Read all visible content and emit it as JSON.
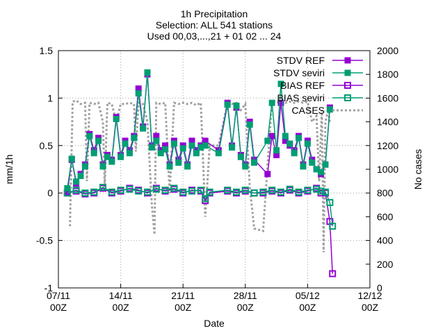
{
  "chart_data": {
    "type": "line",
    "title_lines": [
      "1h Precipitation",
      "Selection: ALL    541 stations",
      "Used 00,03,...,21 + 01 02 ... 24"
    ],
    "xlabel": "Date",
    "ylabel": "mm/1h",
    "y2label": "No cases",
    "ylim": [
      -1,
      1.5
    ],
    "y2lim": [
      0,
      2000
    ],
    "xlim": [
      "2011-11-07 00Z",
      "2011-12-12 00Z"
    ],
    "x_ticks": [
      {
        "day": 0,
        "label": "07/11",
        "sub": "00Z"
      },
      {
        "day": 7,
        "label": "14/11",
        "sub": "00Z"
      },
      {
        "day": 14,
        "label": "21/11",
        "sub": "00Z"
      },
      {
        "day": 21,
        "label": "28/11",
        "sub": "00Z"
      },
      {
        "day": 28,
        "label": "05/12",
        "sub": "00Z"
      },
      {
        "day": 35,
        "label": "12/12",
        "sub": "00Z"
      }
    ],
    "y_ticks": [
      {
        "v": -1,
        "label": "-1"
      },
      {
        "v": -0.5,
        "label": "-0.5"
      },
      {
        "v": 0,
        "label": "0"
      },
      {
        "v": 0.5,
        "label": "0.5"
      },
      {
        "v": 1,
        "label": "1"
      },
      {
        "v": 1.5,
        "label": "1.5"
      }
    ],
    "y2_ticks": [
      {
        "v": 0,
        "label": "0"
      },
      {
        "v": 200,
        "label": "200"
      },
      {
        "v": 400,
        "label": "400"
      },
      {
        "v": 600,
        "label": "600"
      },
      {
        "v": 800,
        "label": "800"
      },
      {
        "v": 1000,
        "label": "1000"
      },
      {
        "v": 1200,
        "label": "1200"
      },
      {
        "v": 1400,
        "label": "1400"
      },
      {
        "v": 1600,
        "label": "1600"
      },
      {
        "v": 1800,
        "label": "1800"
      },
      {
        "v": 2000,
        "label": "2000"
      }
    ],
    "grid": true,
    "legend_position": "top-right",
    "series": [
      {
        "name": "STDV REF",
        "color": "#9400d3",
        "marker": "filled-square",
        "points": [
          [
            1,
            0.0
          ],
          [
            1.5,
            0.35
          ],
          [
            2,
            0.1
          ],
          [
            2.5,
            0.2
          ],
          [
            3,
            0.3
          ],
          [
            3.5,
            0.62
          ],
          [
            4,
            0.45
          ],
          [
            4.5,
            0.58
          ],
          [
            5,
            0.3
          ],
          [
            5.5,
            0.4
          ],
          [
            6,
            0.35
          ],
          [
            6.5,
            0.8
          ],
          [
            7,
            0.4
          ],
          [
            7.5,
            0.55
          ],
          [
            8,
            0.45
          ],
          [
            8.5,
            0.6
          ],
          [
            9,
            1.1
          ],
          [
            9.5,
            0.7
          ],
          [
            10,
            1.25
          ],
          [
            10.5,
            0.5
          ],
          [
            11,
            0.6
          ],
          [
            11.5,
            0.45
          ],
          [
            12,
            0.5
          ],
          [
            12.5,
            0.3
          ],
          [
            13,
            0.55
          ],
          [
            13.5,
            0.35
          ],
          [
            14,
            0.5
          ],
          [
            14.5,
            0.3
          ],
          [
            15,
            0.55
          ],
          [
            15.5,
            0.45
          ],
          [
            16,
            0.5
          ],
          [
            16.5,
            0.55
          ],
          [
            18,
            0.45
          ],
          [
            19,
            0.95
          ],
          [
            19.5,
            0.5
          ],
          [
            20,
            0.9
          ],
          [
            20.5,
            0.4
          ],
          [
            21,
            0.3
          ],
          [
            21.5,
            0.75
          ],
          [
            22,
            0.35
          ],
          [
            23.5,
            0.2
          ],
          [
            24,
            0.6
          ],
          [
            24.5,
            0.4
          ],
          [
            25,
            0.95
          ],
          [
            25.5,
            0.55
          ],
          [
            26,
            0.5
          ],
          [
            26.5,
            0.45
          ],
          [
            27,
            0.6
          ],
          [
            27.5,
            0.3
          ],
          [
            28,
            0.55
          ],
          [
            28.5,
            0.35
          ],
          [
            29,
            0.25
          ],
          [
            29.5,
            0.2
          ],
          [
            30,
            0.3
          ],
          [
            30.5,
            0.9
          ]
        ]
      },
      {
        "name": "STDV seviri",
        "color": "#009e73",
        "marker": "filled-square",
        "points": [
          [
            1,
            0.05
          ],
          [
            1.5,
            0.36
          ],
          [
            2,
            0.12
          ],
          [
            2.5,
            0.18
          ],
          [
            3,
            0.28
          ],
          [
            3.5,
            0.6
          ],
          [
            4,
            0.42
          ],
          [
            4.5,
            0.55
          ],
          [
            5,
            0.28
          ],
          [
            5.5,
            0.38
          ],
          [
            6,
            0.33
          ],
          [
            6.5,
            0.78
          ],
          [
            7,
            0.38
          ],
          [
            7.5,
            0.52
          ],
          [
            8,
            0.42
          ],
          [
            8.5,
            0.58
          ],
          [
            9,
            1.05
          ],
          [
            9.5,
            0.68
          ],
          [
            10,
            1.27
          ],
          [
            10.5,
            0.48
          ],
          [
            11,
            0.55
          ],
          [
            11.5,
            0.42
          ],
          [
            12,
            0.46
          ],
          [
            12.5,
            0.28
          ],
          [
            13,
            0.52
          ],
          [
            13.5,
            0.32
          ],
          [
            14,
            0.47
          ],
          [
            14.5,
            0.28
          ],
          [
            15,
            0.5
          ],
          [
            15.5,
            0.42
          ],
          [
            16,
            0.48
          ],
          [
            16.5,
            0.5
          ],
          [
            18,
            0.42
          ],
          [
            19,
            0.93
          ],
          [
            19.5,
            0.48
          ],
          [
            20,
            0.92
          ],
          [
            20.5,
            0.38
          ],
          [
            21,
            0.28
          ],
          [
            21.5,
            0.72
          ],
          [
            22,
            0.32
          ],
          [
            23.5,
            0.55
          ],
          [
            24,
            0.95
          ],
          [
            24.5,
            0.45
          ],
          [
            25,
            1.15
          ],
          [
            25.5,
            0.6
          ],
          [
            26,
            0.52
          ],
          [
            26.5,
            0.42
          ],
          [
            27,
            0.58
          ],
          [
            27.5,
            0.28
          ],
          [
            28,
            0.52
          ],
          [
            28.5,
            0.32
          ],
          [
            29,
            0.25
          ],
          [
            29.5,
            0.22
          ],
          [
            30,
            0.3
          ],
          [
            30.5,
            0.88
          ]
        ]
      },
      {
        "name": "BIAS REF",
        "color": "#9400d3",
        "marker": "open-square",
        "points": [
          [
            1,
            0.0
          ],
          [
            2,
            0.02
          ],
          [
            3,
            -0.01
          ],
          [
            4,
            0.0
          ],
          [
            5,
            0.05
          ],
          [
            6,
            0.0
          ],
          [
            7,
            0.02
          ],
          [
            8,
            0.05
          ],
          [
            9,
            0.03
          ],
          [
            10,
            0.0
          ],
          [
            11,
            0.05
          ],
          [
            12,
            0.02
          ],
          [
            13,
            0.04
          ],
          [
            14,
            0.0
          ],
          [
            15,
            0.03
          ],
          [
            16,
            0.02
          ],
          [
            16.5,
            -0.08
          ],
          [
            17,
            0.0
          ],
          [
            19,
            0.02
          ],
          [
            20,
            0.0
          ],
          [
            21,
            0.02
          ],
          [
            22,
            0.0
          ],
          [
            23,
            0.0
          ],
          [
            24,
            0.02
          ],
          [
            25,
            0.0
          ],
          [
            26,
            0.03
          ],
          [
            27,
            0.0
          ],
          [
            28,
            0.02
          ],
          [
            29,
            0.05
          ],
          [
            29.5,
            0.0
          ],
          [
            30,
            0.0
          ],
          [
            30.5,
            -0.3
          ],
          [
            30.8,
            -0.85
          ]
        ]
      },
      {
        "name": "BIAS seviri",
        "color": "#009e73",
        "marker": "open-square",
        "points": [
          [
            1,
            0.0
          ],
          [
            2,
            0.03
          ],
          [
            3,
            0.0
          ],
          [
            4,
            0.01
          ],
          [
            5,
            0.06
          ],
          [
            6,
            0.01
          ],
          [
            7,
            0.03
          ],
          [
            8,
            0.04
          ],
          [
            9,
            0.02
          ],
          [
            10,
            0.01
          ],
          [
            11,
            0.04
          ],
          [
            12,
            0.03
          ],
          [
            13,
            0.05
          ],
          [
            14,
            0.01
          ],
          [
            15,
            0.02
          ],
          [
            16,
            0.03
          ],
          [
            16.5,
            -0.06
          ],
          [
            17,
            0.01
          ],
          [
            19,
            0.03
          ],
          [
            20,
            0.01
          ],
          [
            21,
            0.03
          ],
          [
            22,
            0.0
          ],
          [
            23,
            0.01
          ],
          [
            24,
            0.03
          ],
          [
            25,
            0.01
          ],
          [
            26,
            0.04
          ],
          [
            27,
            0.01
          ],
          [
            28,
            0.03
          ],
          [
            29,
            0.04
          ],
          [
            29.5,
            0.02
          ],
          [
            30,
            0.01
          ],
          [
            30.5,
            -0.1
          ],
          [
            30.8,
            -0.35
          ]
        ]
      },
      {
        "name": "CASES",
        "color": "#a0a0a0",
        "marker": "none",
        "axis": "y2",
        "points": [
          [
            1.3,
            520
          ],
          [
            1.6,
            1570
          ],
          [
            2,
            1580
          ],
          [
            2.5,
            1550
          ],
          [
            3,
            1560
          ],
          [
            3.2,
            900
          ],
          [
            3.5,
            1560
          ],
          [
            4,
            1550
          ],
          [
            4.5,
            1560
          ],
          [
            5,
            1400
          ],
          [
            5.2,
            850
          ],
          [
            5.5,
            1560
          ],
          [
            6,
            1550
          ],
          [
            6.5,
            1400
          ],
          [
            7,
            1550
          ],
          [
            7.5,
            1550
          ],
          [
            8,
            1560
          ],
          [
            8.5,
            1550
          ],
          [
            8.7,
            1150
          ],
          [
            9,
            1560
          ],
          [
            9.5,
            1550
          ],
          [
            10,
            1400
          ],
          [
            10.5,
            700
          ],
          [
            10.8,
            450
          ],
          [
            11,
            1560
          ],
          [
            11.5,
            1550
          ],
          [
            12,
            1560
          ],
          [
            12.5,
            800
          ],
          [
            13,
            1560
          ],
          [
            13.5,
            1550
          ],
          [
            14,
            1560
          ],
          [
            14.5,
            1550
          ],
          [
            15,
            1560
          ],
          [
            15.5,
            1540
          ],
          [
            16,
            1560
          ],
          [
            16.5,
            600
          ],
          [
            17,
            1200
          ],
          [
            18,
            1200
          ],
          [
            19,
            1560
          ],
          [
            19.5,
            1550
          ],
          [
            20,
            1560
          ],
          [
            20.5,
            1500
          ],
          [
            21,
            1550
          ],
          [
            21.5,
            850
          ],
          [
            22,
            500
          ],
          [
            23,
            480
          ],
          [
            24,
            1580
          ],
          [
            24.5,
            1560
          ],
          [
            25,
            1570
          ],
          [
            25.5,
            1560
          ],
          [
            26,
            1570
          ],
          [
            26.5,
            1560
          ],
          [
            27,
            1570
          ],
          [
            27.5,
            1560
          ],
          [
            28,
            1570
          ],
          [
            28.5,
            1400
          ],
          [
            29,
            1450
          ],
          [
            29.3,
            900
          ],
          [
            29.6,
            1500
          ],
          [
            29.8,
            300
          ],
          [
            30,
            1400
          ],
          [
            30.3,
            1500
          ],
          [
            30.5,
            1400
          ]
        ]
      }
    ]
  }
}
